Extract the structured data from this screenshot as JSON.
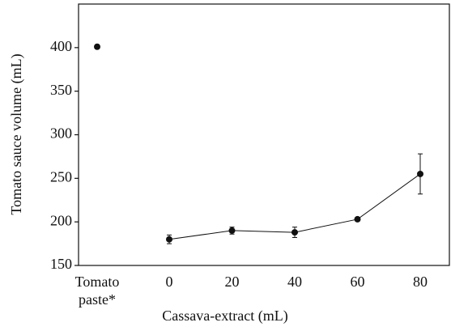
{
  "chart_data": {
    "type": "line",
    "xlabel": "Cassava-extract (mL)",
    "ylabel": "Tomato sauce volume (mL)",
    "categories": [
      "Tomato paste*",
      "0",
      "20",
      "40",
      "60",
      "80"
    ],
    "series": [
      {
        "color": "#111111",
        "line": false,
        "values": [
          401,
          null,
          null,
          null,
          null,
          null
        ]
      },
      {
        "color": "#111111",
        "line": true,
        "values": [
          null,
          180,
          190,
          188,
          203,
          255
        ],
        "errors": [
          null,
          5,
          4,
          6,
          2,
          23
        ]
      }
    ],
    "ylim": [
      150,
      450
    ],
    "yticks": [
      150,
      200,
      250,
      300,
      350,
      400
    ],
    "grid": false
  }
}
